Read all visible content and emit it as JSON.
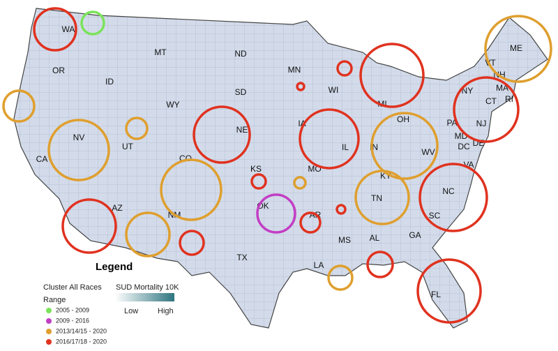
{
  "states": [
    "WA",
    "OR",
    "MT",
    "ND",
    "MN",
    "ID",
    "WY",
    "SD",
    "WI",
    "MI",
    "NY",
    "VT",
    "NH",
    "ME",
    "MA",
    "CT",
    "RI",
    "NE",
    "IA",
    "IL",
    "IN",
    "OH",
    "PA",
    "NJ",
    "DE",
    "MD",
    "DC",
    "WV",
    "VA",
    "NV",
    "UT",
    "CO",
    "KS",
    "MO",
    "KY",
    "CA",
    "AZ",
    "NM",
    "OK",
    "AR",
    "TN",
    "NC",
    "SC",
    "MS",
    "AL",
    "GA",
    "TX",
    "LA",
    "FL"
  ],
  "legend": {
    "title": "Legend",
    "cluster_title": "Cluster All Races",
    "range_title": "Range",
    "ranges": [
      {
        "label": "2005 - 2009",
        "color": "#7be35a"
      },
      {
        "label": "2009 - 2016",
        "color": "#c23ec4"
      },
      {
        "label": "2013/14/15 - 2020",
        "color": "#df9f2e"
      },
      {
        "label": "2016/17/18 - 2020",
        "color": "#e0321f"
      }
    ],
    "scale": {
      "title": "SUD Mortality 10K",
      "low": "Low",
      "high": "High",
      "low_color": "#ffffff",
      "high_color": "#2e7580"
    }
  }
}
